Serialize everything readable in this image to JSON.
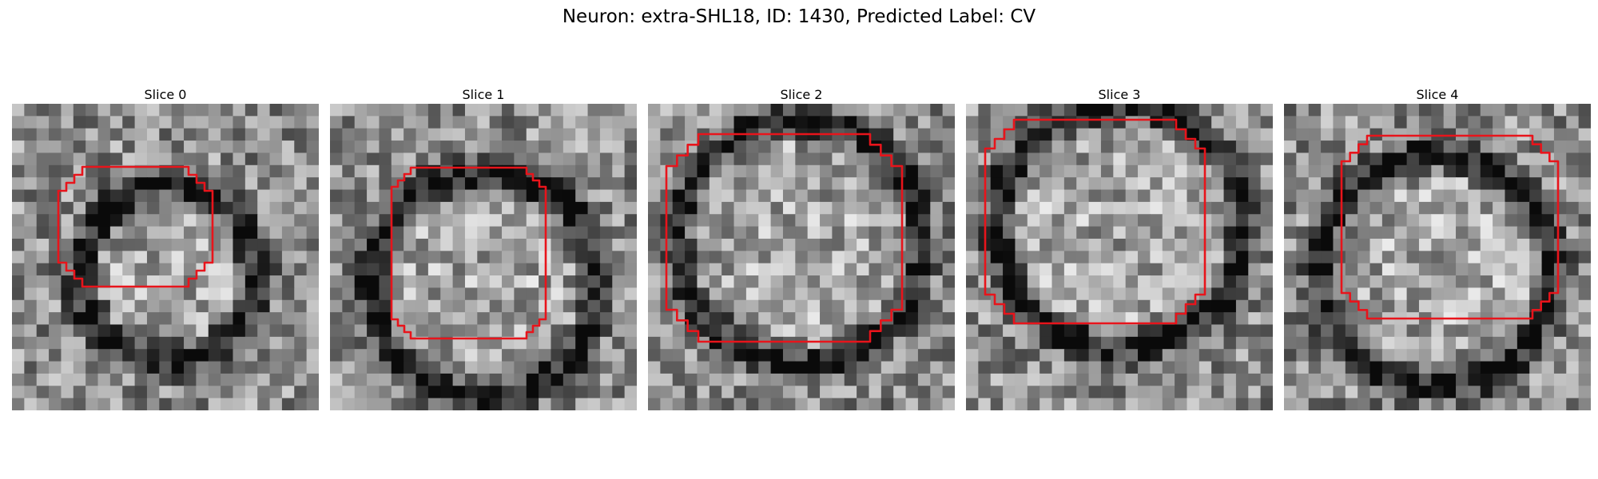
{
  "figure": {
    "title": "Neuron: extra-SHL18, ID: 1430, Predicted Label: CV"
  },
  "panels": [
    {
      "title": "Slice 0"
    },
    {
      "title": "Slice 1"
    },
    {
      "title": "Slice 2"
    },
    {
      "title": "Slice 3"
    },
    {
      "title": "Slice 4"
    }
  ],
  "colors": {
    "contour": "#e8141b",
    "background": "#ffffff"
  }
}
